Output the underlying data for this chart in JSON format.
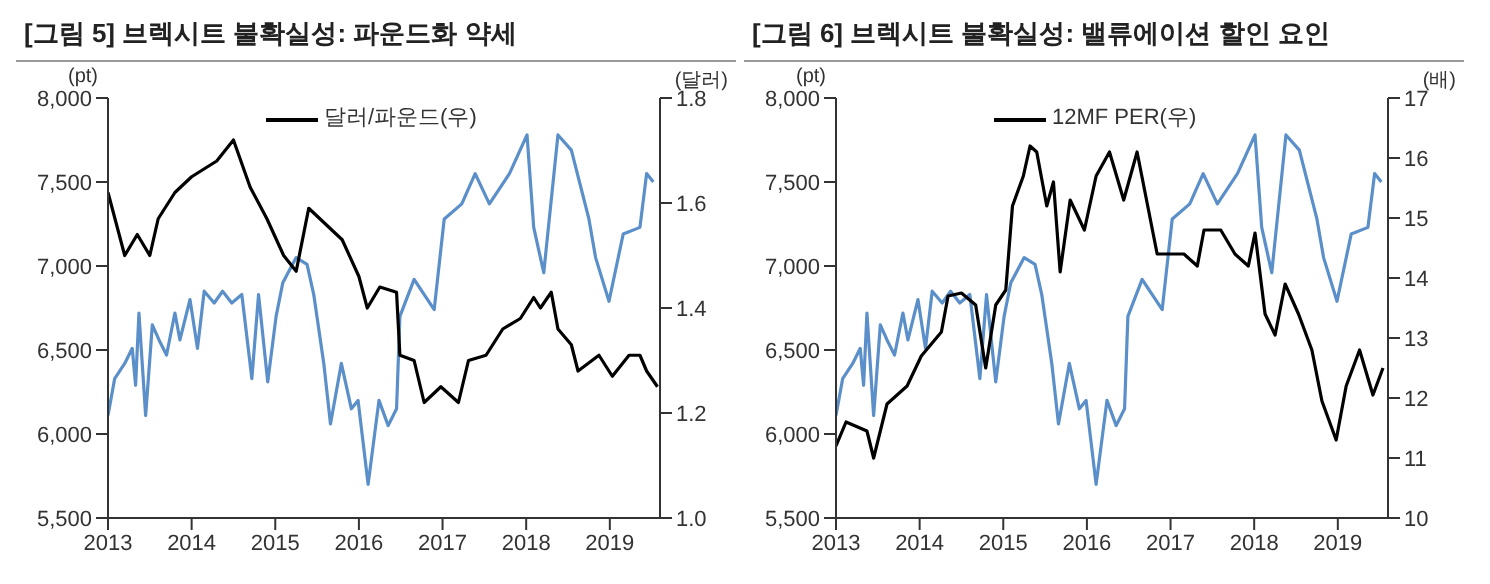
{
  "chart_data": [
    {
      "type": "line",
      "title": "[그림 5] 브렉시트 불확실성: 파운드화 약세",
      "ylabel": "(pt)",
      "y2label": "(달러)",
      "xlim": [
        2013,
        2019.6
      ],
      "xticks": [
        2013,
        2014,
        2015,
        2016,
        2017,
        2018,
        2019
      ],
      "ylim": [
        5500,
        8000
      ],
      "yticks": [
        {
          "value": 5500,
          "label": "5,500"
        },
        {
          "value": 6000,
          "label": "6,000"
        },
        {
          "value": 6500,
          "label": "6,500"
        },
        {
          "value": 7000,
          "label": "7,000"
        },
        {
          "value": 7500,
          "label": "7,500"
        },
        {
          "value": 8000,
          "label": "8,000"
        }
      ],
      "y2lim": [
        1,
        1.8
      ],
      "y2ticks": [
        {
          "value": 1,
          "label": "1.0"
        },
        1.2,
        1.4,
        1.6,
        1.8
      ],
      "legend": "top",
      "marker": "none",
      "line_style": "solid",
      "series": [
        {
          "color": "#5b8fc9",
          "x": [
            2013.0,
            2013.08,
            2013.2,
            2013.29,
            2013.33,
            2013.37,
            2013.45,
            2013.53,
            2013.61,
            2013.7,
            2013.8,
            2013.86,
            2013.98,
            2014.07,
            2014.15,
            2014.27,
            2014.37,
            2014.48,
            2014.6,
            2014.72,
            2014.8,
            2014.91,
            2015.01,
            2015.09,
            2015.25,
            2015.38,
            2015.46,
            2015.58,
            2015.66,
            2015.79,
            2015.91,
            2015.99,
            2016.11,
            2016.24,
            2016.35,
            2016.45,
            2016.49,
            2016.66,
            2016.9,
            2017.02,
            2017.23,
            2017.39,
            2017.56,
            2017.8,
            2018.01,
            2018.09,
            2018.21,
            2018.38,
            2018.54,
            2018.75,
            2018.83,
            2018.99,
            2019.16,
            2019.36,
            2019.44,
            2019.52
          ],
          "values": [
            6110,
            6330,
            6420,
            6510,
            6290,
            6720,
            6110,
            6650,
            6560,
            6470,
            6720,
            6560,
            6800,
            6510,
            6850,
            6780,
            6850,
            6780,
            6830,
            6330,
            6830,
            6310,
            6700,
            6900,
            7050,
            7010,
            6830,
            6420,
            6060,
            6420,
            6150,
            6200,
            5700,
            6200,
            6050,
            6150,
            6700,
            6920,
            6740,
            7280,
            7370,
            7550,
            7370,
            7550,
            7780,
            7230,
            6960,
            7780,
            7690,
            7280,
            7050,
            6790,
            7190,
            7230,
            7550,
            7500
          ]
        },
        {
          "name": "달러/파운드(우)",
          "color": "#000000",
          "axis": "y2",
          "x": [
            2013.0,
            2013.2,
            2013.35,
            2013.5,
            2013.6,
            2013.8,
            2014.0,
            2014.3,
            2014.5,
            2014.7,
            2014.9,
            2015.1,
            2015.25,
            2015.4,
            2015.6,
            2015.8,
            2016.0,
            2016.1,
            2016.25,
            2016.45,
            2016.49,
            2016.66,
            2016.78,
            2016.98,
            2017.19,
            2017.31,
            2017.52,
            2017.72,
            2017.93,
            2018.09,
            2018.17,
            2018.3,
            2018.38,
            2018.54,
            2018.62,
            2018.87,
            2019.03,
            2019.23,
            2019.36,
            2019.44,
            2019.57
          ],
          "values": [
            1.62,
            1.5,
            1.54,
            1.5,
            1.57,
            1.62,
            1.65,
            1.68,
            1.72,
            1.63,
            1.57,
            1.5,
            1.47,
            1.59,
            1.56,
            1.53,
            1.46,
            1.4,
            1.44,
            1.43,
            1.31,
            1.3,
            1.22,
            1.25,
            1.22,
            1.3,
            1.31,
            1.36,
            1.38,
            1.42,
            1.4,
            1.43,
            1.36,
            1.33,
            1.28,
            1.31,
            1.27,
            1.31,
            1.31,
            1.28,
            1.25
          ]
        }
      ]
    },
    {
      "type": "line",
      "title": "[그림 6] 브렉시트 불확실성: 밸류에이션 할인 요인",
      "ylabel": "(pt)",
      "y2label": "(배)",
      "xlim": [
        2013,
        2019.6
      ],
      "xticks": [
        2013,
        2014,
        2015,
        2016,
        2017,
        2018,
        2019
      ],
      "ylim": [
        5500,
        8000
      ],
      "yticks": [
        {
          "value": 5500,
          "label": "5,500"
        },
        {
          "value": 6000,
          "label": "6,000"
        },
        {
          "value": 6500,
          "label": "6,500"
        },
        {
          "value": 7000,
          "label": "7,000"
        },
        {
          "value": 7500,
          "label": "7,500"
        },
        {
          "value": 8000,
          "label": "8,000"
        }
      ],
      "y2lim": [
        10,
        17
      ],
      "y2ticks": [
        10,
        11,
        12,
        13,
        14,
        15,
        16,
        17
      ],
      "legend": "top",
      "marker": "none",
      "line_style": "solid",
      "series": [
        {
          "color": "#5b8fc9",
          "x": [
            2013.0,
            2013.08,
            2013.2,
            2013.29,
            2013.33,
            2013.37,
            2013.45,
            2013.53,
            2013.61,
            2013.7,
            2013.8,
            2013.86,
            2013.98,
            2014.07,
            2014.15,
            2014.27,
            2014.37,
            2014.48,
            2014.6,
            2014.72,
            2014.8,
            2014.91,
            2015.01,
            2015.09,
            2015.25,
            2015.38,
            2015.46,
            2015.58,
            2015.66,
            2015.79,
            2015.91,
            2015.99,
            2016.11,
            2016.24,
            2016.35,
            2016.45,
            2016.49,
            2016.66,
            2016.9,
            2017.02,
            2017.23,
            2017.39,
            2017.56,
            2017.8,
            2018.01,
            2018.09,
            2018.21,
            2018.38,
            2018.54,
            2018.75,
            2018.83,
            2018.99,
            2019.16,
            2019.36,
            2019.44,
            2019.52
          ],
          "values": [
            6110,
            6330,
            6420,
            6510,
            6290,
            6720,
            6110,
            6650,
            6560,
            6470,
            6720,
            6560,
            6800,
            6510,
            6850,
            6780,
            6850,
            6780,
            6830,
            6330,
            6830,
            6310,
            6700,
            6900,
            7050,
            7010,
            6830,
            6420,
            6060,
            6420,
            6150,
            6200,
            5700,
            6200,
            6050,
            6150,
            6700,
            6920,
            6740,
            7280,
            7370,
            7550,
            7370,
            7550,
            7780,
            7230,
            6960,
            7780,
            7690,
            7280,
            7050,
            6790,
            7190,
            7230,
            7550,
            7500
          ]
        },
        {
          "name": "12MF PER(우)",
          "color": "#000000",
          "axis": "y2",
          "x": [
            2013.0,
            2013.12,
            2013.37,
            2013.45,
            2013.61,
            2013.85,
            2014.02,
            2014.26,
            2014.34,
            2014.5,
            2014.67,
            2014.79,
            2014.91,
            2015.03,
            2015.11,
            2015.24,
            2015.32,
            2015.4,
            2015.52,
            2015.6,
            2015.68,
            2015.8,
            2015.97,
            2016.11,
            2016.27,
            2016.44,
            2016.6,
            2016.84,
            2017.16,
            2017.32,
            2017.4,
            2017.6,
            2017.77,
            2017.93,
            2018.01,
            2018.13,
            2018.25,
            2018.37,
            2018.53,
            2018.69,
            2018.81,
            2018.98,
            2019.1,
            2019.26,
            2019.42,
            2019.54
          ],
          "values": [
            11.2,
            11.6,
            11.45,
            11.0,
            11.9,
            12.2,
            12.7,
            13.1,
            13.7,
            13.75,
            13.55,
            12.5,
            13.55,
            13.8,
            15.2,
            15.7,
            16.2,
            16.1,
            15.2,
            15.6,
            14.1,
            15.3,
            14.8,
            15.7,
            16.1,
            15.3,
            16.1,
            14.4,
            14.4,
            14.2,
            14.8,
            14.8,
            14.4,
            14.2,
            14.75,
            13.4,
            13.05,
            13.9,
            13.4,
            12.8,
            11.95,
            11.3,
            12.2,
            12.8,
            12.05,
            12.5
          ]
        }
      ]
    }
  ]
}
